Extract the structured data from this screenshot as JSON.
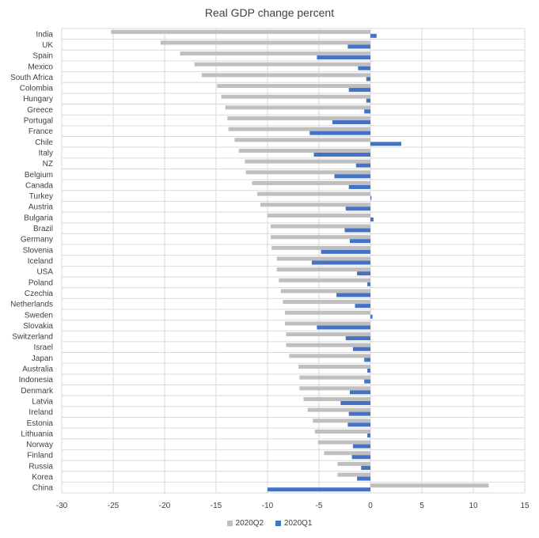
{
  "chart_data": {
    "type": "bar",
    "orientation": "horizontal",
    "title": "Real GDP change percent",
    "xlim": [
      -30,
      15
    ],
    "xticks": [
      -30,
      -25,
      -20,
      -15,
      -10,
      -5,
      0,
      5,
      10,
      15
    ],
    "grid": true,
    "legend_position": "bottom",
    "categories": [
      "India",
      "UK",
      "Spain",
      "Mexico",
      "South Africa",
      "Colombia",
      "Hungary",
      "Greece",
      "Portugal",
      "France",
      "Chile",
      "Italy",
      "NZ",
      "Belgium",
      "Canada",
      "Turkey",
      "Austria",
      "Bulgaria",
      "Brazil",
      "Germany",
      "Slovenia",
      "Iceland",
      "USA",
      "Poland",
      "Czechia",
      "Netherlands",
      "Sweden",
      "Slovakia",
      "Switzerland",
      "Israel",
      "Japan",
      "Australia",
      "Indonesia",
      "Denmark",
      "Latvia",
      "Ireland",
      "Estonia",
      "Lithuania",
      "Norway",
      "Finland",
      "Russia",
      "Korea",
      "China"
    ],
    "series": [
      {
        "name": "2020Q2",
        "color": "#bfbfbf",
        "values": [
          -25.2,
          -20.4,
          -18.5,
          -17.1,
          -16.4,
          -14.9,
          -14.5,
          -14.1,
          -13.9,
          -13.8,
          -13.2,
          -12.8,
          -12.2,
          -12.1,
          -11.5,
          -11.0,
          -10.7,
          -10.0,
          -9.7,
          -9.7,
          -9.6,
          -9.1,
          -9.1,
          -8.9,
          -8.7,
          -8.5,
          -8.3,
          -8.3,
          -8.2,
          -8.2,
          -7.9,
          -7.0,
          -6.9,
          -6.9,
          -6.5,
          -6.1,
          -5.6,
          -5.4,
          -5.1,
          -4.5,
          -3.2,
          -3.2,
          11.5
        ]
      },
      {
        "name": "2020Q1",
        "color": "#4472c4",
        "values": [
          0.6,
          -2.2,
          -5.2,
          -1.2,
          -0.4,
          -2.1,
          -0.4,
          -0.6,
          -3.7,
          -5.9,
          3.0,
          -5.5,
          -1.4,
          -3.5,
          -2.1,
          0.1,
          -2.4,
          0.3,
          -2.5,
          -2.0,
          -4.8,
          -5.7,
          -1.3,
          -0.3,
          -3.3,
          -1.5,
          0.2,
          -5.2,
          -2.4,
          -1.7,
          -0.6,
          -0.3,
          -0.6,
          -2.0,
          -2.9,
          -2.1,
          -2.2,
          -0.3,
          -1.7,
          -1.8,
          -0.9,
          -1.3,
          -10.0
        ]
      }
    ]
  }
}
